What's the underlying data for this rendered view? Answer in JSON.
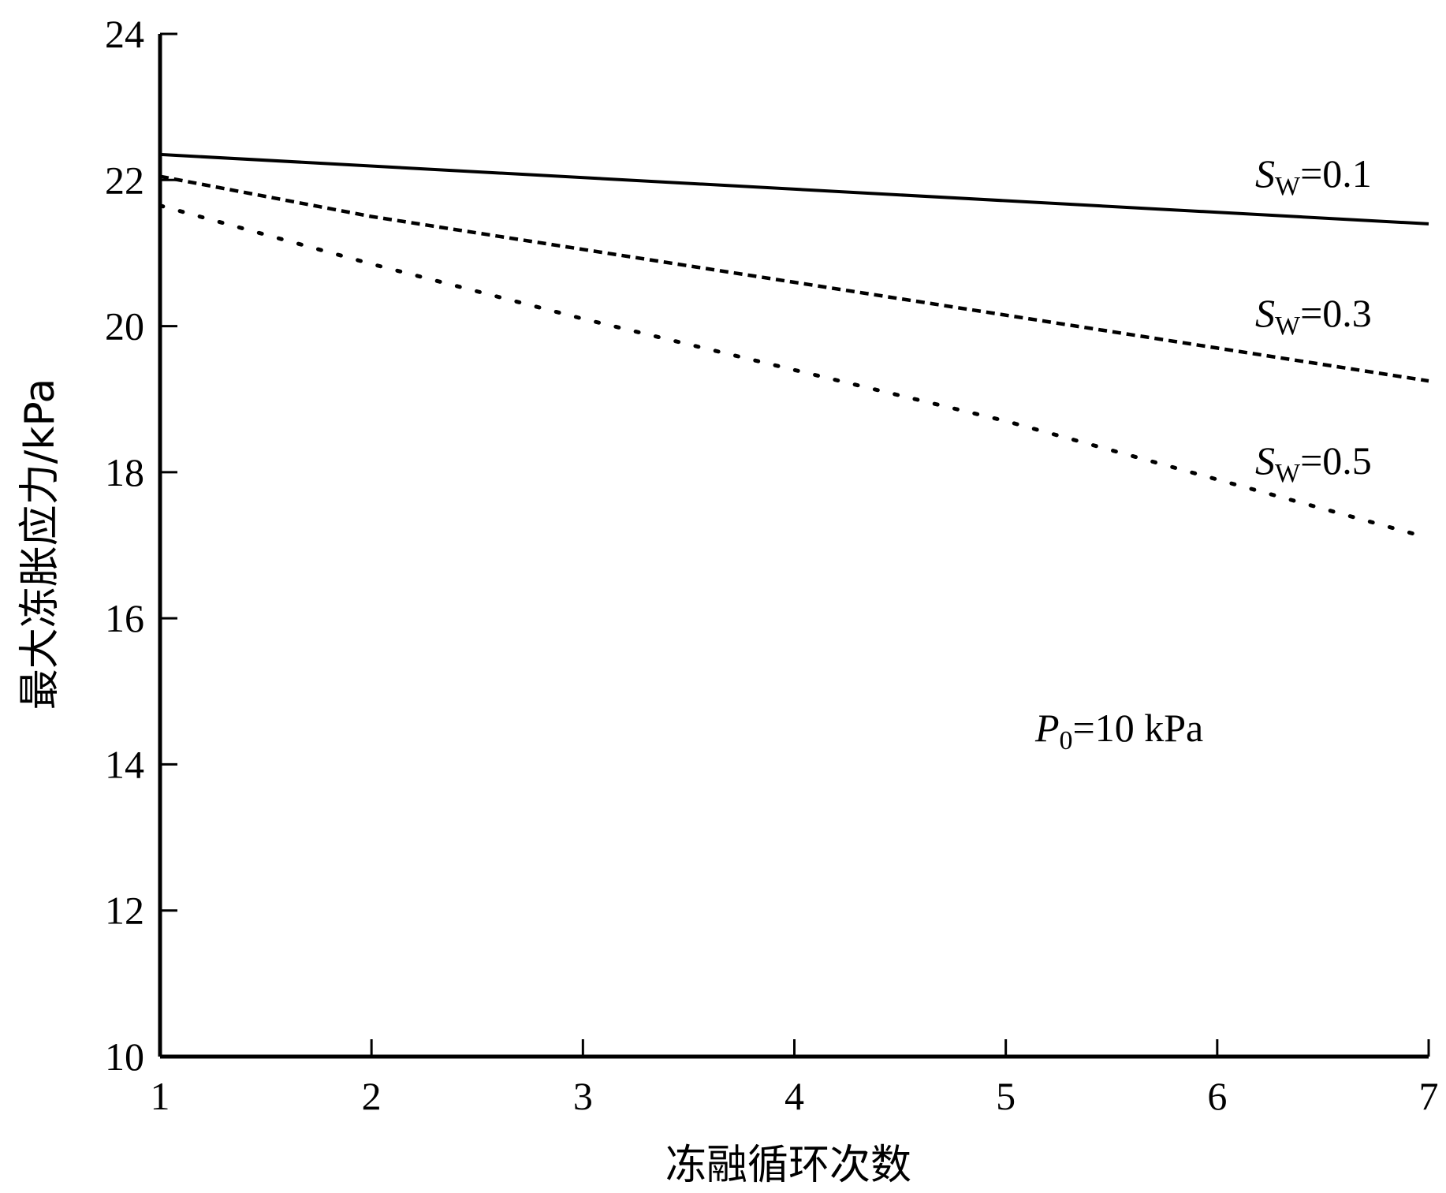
{
  "chart_data": {
    "type": "line",
    "xlabel": "冻融循环次数",
    "ylabel": "最大冻胀应力/kPa",
    "xlim": [
      1,
      7
    ],
    "ylim": [
      10,
      24
    ],
    "xticks": [
      1,
      2,
      3,
      4,
      5,
      6,
      7
    ],
    "yticks": [
      10,
      12,
      14,
      16,
      18,
      20,
      22,
      24
    ],
    "grid": false,
    "series": [
      {
        "style": "solid",
        "label": {
          "main": "S",
          "sub": "W",
          "rest": "=0.1"
        },
        "points": [
          [
            1,
            22.35
          ],
          [
            7,
            21.4
          ]
        ]
      },
      {
        "style": "dashed",
        "label": {
          "main": "S",
          "sub": "W",
          "rest": "=0.3"
        },
        "points": [
          [
            1,
            22.05
          ],
          [
            2,
            21.5
          ],
          [
            3,
            21.05
          ],
          [
            4,
            20.6
          ],
          [
            5,
            20.15
          ],
          [
            6,
            19.7
          ],
          [
            7,
            19.25
          ]
        ]
      },
      {
        "style": "dotted",
        "label": {
          "main": "S",
          "sub": "W",
          "rest": "=0.5"
        },
        "points": [
          [
            1,
            21.65
          ],
          [
            2,
            20.85
          ],
          [
            3,
            20.1
          ],
          [
            4,
            19.4
          ],
          [
            5,
            18.7
          ],
          [
            6,
            17.9
          ],
          [
            7,
            17.1
          ]
        ]
      }
    ],
    "annotation": {
      "main": "P",
      "sub": "0",
      "rest": "=10 kPa"
    }
  }
}
